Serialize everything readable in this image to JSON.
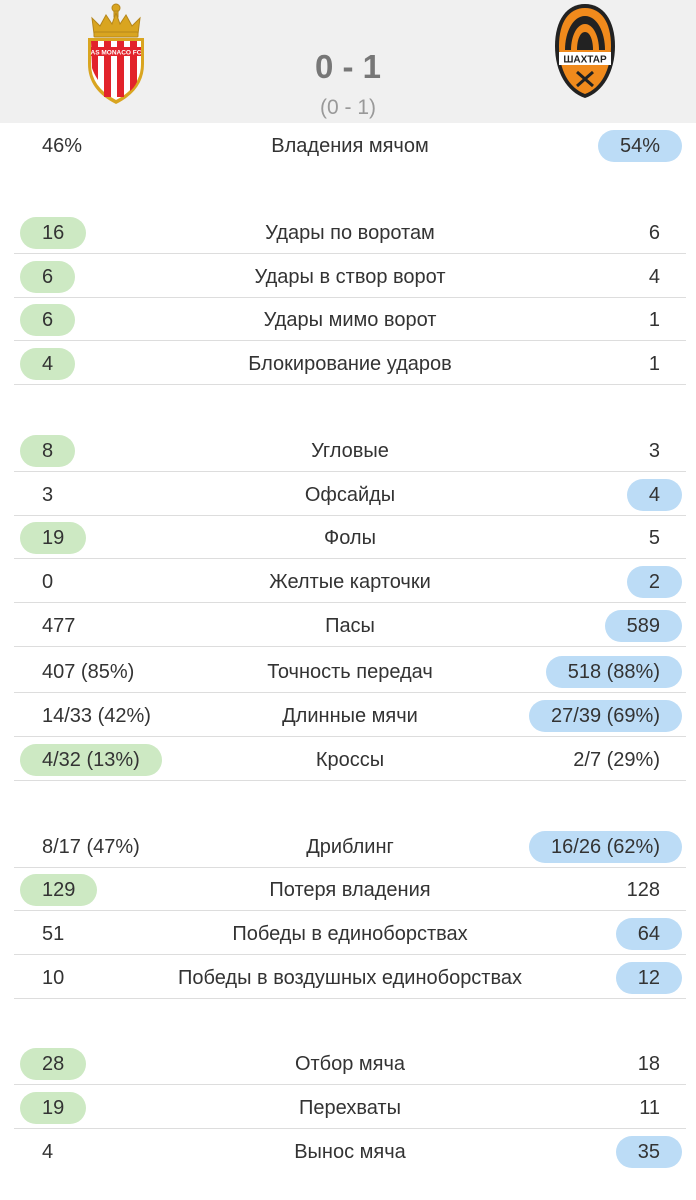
{
  "match": {
    "home_logo_text": "AS MONACO FC",
    "away_logo_text": "ШАХТАР",
    "score": "0 - 1",
    "halftime": "(0 - 1)"
  },
  "colors": {
    "home_highlight": "#cde9c3",
    "away_highlight": "#bcdcf6",
    "header_bg": "#f0f0f0"
  },
  "stats": [
    {
      "label": "Владения мячом",
      "home": "46%",
      "away": "54%",
      "better": "away"
    },
    {
      "label": "Удары по воротам",
      "home": "16",
      "away": "6",
      "better": "home"
    },
    {
      "label": "Удары в створ ворот",
      "home": "6",
      "away": "4",
      "better": "home"
    },
    {
      "label": "Удары мимо ворот",
      "home": "6",
      "away": "1",
      "better": "home"
    },
    {
      "label": "Блокирование ударов",
      "home": "4",
      "away": "1",
      "better": "home"
    },
    {
      "label": "Угловые",
      "home": "8",
      "away": "3",
      "better": "home"
    },
    {
      "label": "Офсайды",
      "home": "3",
      "away": "4",
      "better": "away"
    },
    {
      "label": "Фолы",
      "home": "19",
      "away": "5",
      "better": "home"
    },
    {
      "label": "Желтые карточки",
      "home": "0",
      "away": "2",
      "better": "away"
    },
    {
      "label": "Пасы",
      "home": "477",
      "away": "589",
      "better": "away"
    },
    {
      "label": "Точность передач",
      "home": "407 (85%)",
      "away": "518 (88%)",
      "better": "away"
    },
    {
      "label": "Длинные мячи",
      "home": "14/33 (42%)",
      "away": "27/39 (69%)",
      "better": "away"
    },
    {
      "label": "Кроссы",
      "home": "4/32 (13%)",
      "away": "2/7 (29%)",
      "better": "home"
    },
    {
      "label": "Дриблинг",
      "home": "8/17 (47%)",
      "away": "16/26 (62%)",
      "better": "away"
    },
    {
      "label": "Потеря владения",
      "home": "129",
      "away": "128",
      "better": "home"
    },
    {
      "label": "Победы в единоборствах",
      "home": "51",
      "away": "64",
      "better": "away"
    },
    {
      "label": "Победы в воздушных единоборствах",
      "home": "10",
      "away": "12",
      "better": "away"
    },
    {
      "label": "Отбор мяча",
      "home": "28",
      "away": "18",
      "better": "home"
    },
    {
      "label": "Перехваты",
      "home": "19",
      "away": "11",
      "better": "home"
    },
    {
      "label": "Вынос мяча",
      "home": "4",
      "away": "35",
      "better": "away"
    }
  ]
}
